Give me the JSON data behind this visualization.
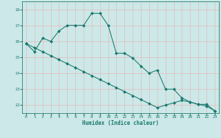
{
  "xlabel": "Humidex (Indice chaleur)",
  "bg_color": "#cce8e8",
  "grid_color": "#aad4d4",
  "line_color": "#1a7a6e",
  "xlim": [
    -0.5,
    23.5
  ],
  "ylim": [
    11.5,
    18.5
  ],
  "xticks": [
    0,
    1,
    2,
    3,
    4,
    5,
    6,
    7,
    8,
    9,
    10,
    11,
    12,
    13,
    14,
    15,
    16,
    17,
    18,
    19,
    20,
    21,
    22,
    23
  ],
  "yticks": [
    12,
    13,
    14,
    15,
    16,
    17,
    18
  ],
  "line1_x": [
    0,
    1,
    2,
    3,
    4,
    5,
    6,
    7,
    8,
    9,
    10,
    11,
    12,
    13,
    14,
    15,
    16,
    17,
    18,
    19,
    20,
    21,
    22,
    23
  ],
  "line1_y": [
    15.85,
    15.35,
    16.2,
    16.0,
    16.65,
    17.0,
    17.0,
    17.0,
    17.75,
    17.75,
    17.0,
    15.25,
    15.25,
    14.95,
    14.45,
    14.0,
    14.2,
    13.0,
    13.0,
    12.45,
    12.2,
    12.05,
    12.05,
    11.65
  ],
  "line2_x": [
    0,
    1,
    2,
    3,
    4,
    5,
    6,
    7,
    8,
    9,
    10,
    11,
    12,
    13,
    14,
    15,
    16,
    17,
    18,
    19,
    20,
    21,
    22,
    23
  ],
  "line2_y": [
    15.85,
    15.6,
    15.35,
    15.1,
    14.85,
    14.6,
    14.35,
    14.1,
    13.85,
    13.6,
    13.35,
    13.1,
    12.85,
    12.6,
    12.35,
    12.1,
    11.85,
    12.0,
    12.15,
    12.3,
    12.2,
    12.05,
    11.95,
    11.65
  ]
}
